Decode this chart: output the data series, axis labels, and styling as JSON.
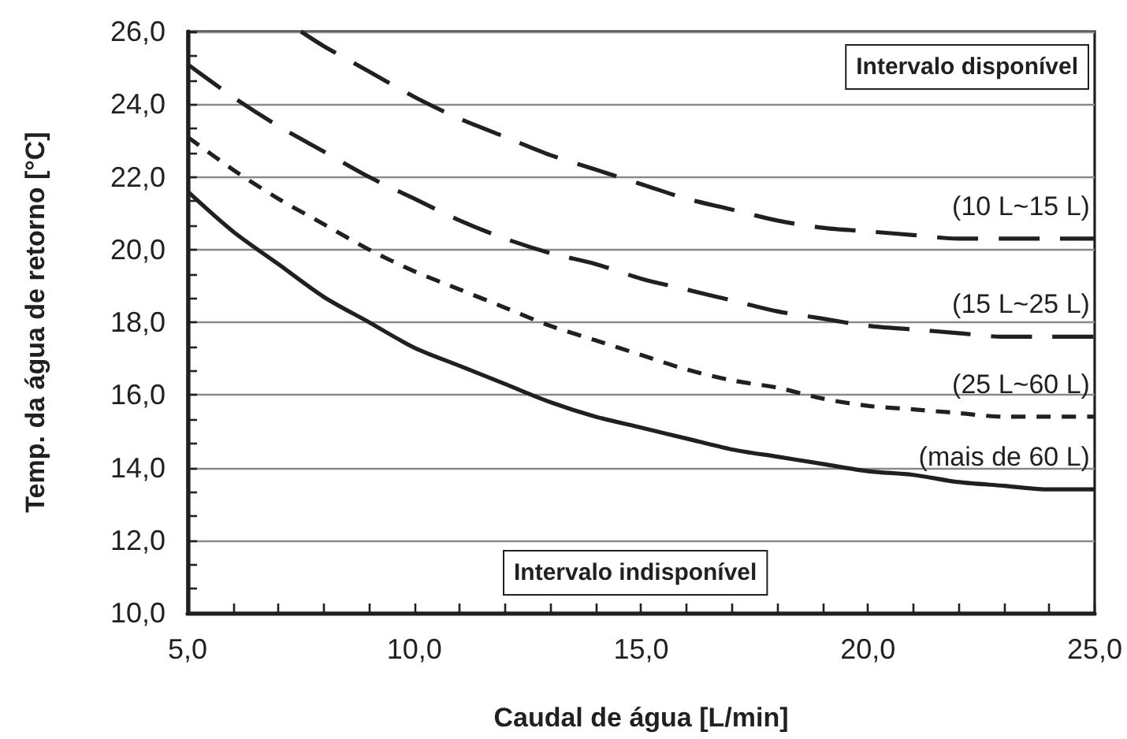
{
  "chart_data": {
    "type": "line",
    "xlabel": "Caudal de água [L/min]",
    "ylabel": "Temp. da água de retorno [°C]",
    "x": [
      5,
      6,
      7,
      8,
      9,
      10,
      11,
      12,
      13,
      14,
      15,
      16,
      17,
      18,
      19,
      20,
      21,
      22,
      23,
      24,
      25
    ],
    "xlim": [
      5,
      25
    ],
    "xticks": [
      {
        "value": 5,
        "label": "5,0"
      },
      {
        "value": 10,
        "label": "10,0"
      },
      {
        "value": 15,
        "label": "15,0"
      },
      {
        "value": 20,
        "label": "20,0"
      },
      {
        "value": 25,
        "label": "25,0"
      }
    ],
    "ylim": [
      10,
      26
    ],
    "yticks": [
      {
        "value": 10,
        "label": "10,0"
      },
      {
        "value": 12,
        "label": "12,0"
      },
      {
        "value": 14,
        "label": "14,0"
      },
      {
        "value": 16,
        "label": "16,0"
      },
      {
        "value": 18,
        "label": "18,0"
      },
      {
        "value": 20,
        "label": "20,0"
      },
      {
        "value": 22,
        "label": "22,0"
      },
      {
        "value": 24,
        "label": "24,0"
      },
      {
        "value": 26,
        "label": "26,0"
      }
    ],
    "grid": "y",
    "annotations": [
      "Intervalo disponível",
      "Intervalo indisponível"
    ],
    "series": [
      {
        "name": "(10 L~15 L)",
        "color": "#231f20",
        "line_style": "dashed",
        "x": [
          7.5,
          8,
          9,
          10,
          11,
          12,
          13,
          14,
          15,
          16,
          17,
          18,
          19,
          20,
          21,
          22,
          23,
          24,
          25
        ],
        "values": [
          26.0,
          25.6,
          24.9,
          24.2,
          23.6,
          23.1,
          22.6,
          22.2,
          21.8,
          21.4,
          21.1,
          20.8,
          20.6,
          20.5,
          20.4,
          20.3,
          20.3,
          20.3,
          20.3
        ]
      },
      {
        "name": "(15 L~25 L)",
        "color": "#231f20",
        "line_style": "dashed",
        "values": [
          25.1,
          24.2,
          23.4,
          22.7,
          22.0,
          21.4,
          20.8,
          20.3,
          19.9,
          19.6,
          19.2,
          18.9,
          18.6,
          18.3,
          18.1,
          17.9,
          17.8,
          17.7,
          17.6,
          17.6,
          17.6
        ]
      },
      {
        "name": "(25 L~60 L)",
        "color": "#231f20",
        "line_style": "dotted",
        "values": [
          23.1,
          22.2,
          21.4,
          20.7,
          20.0,
          19.4,
          18.9,
          18.4,
          17.9,
          17.5,
          17.1,
          16.7,
          16.4,
          16.2,
          15.9,
          15.7,
          15.6,
          15.5,
          15.4,
          15.4,
          15.4
        ]
      },
      {
        "name": "(mais de 60 L)",
        "color": "#231f20",
        "line_style": "solid",
        "values": [
          21.6,
          20.5,
          19.6,
          18.7,
          18.0,
          17.3,
          16.8,
          16.3,
          15.8,
          15.4,
          15.1,
          14.8,
          14.5,
          14.3,
          14.1,
          13.9,
          13.8,
          13.6,
          13.5,
          13.4,
          13.4
        ]
      }
    ]
  }
}
